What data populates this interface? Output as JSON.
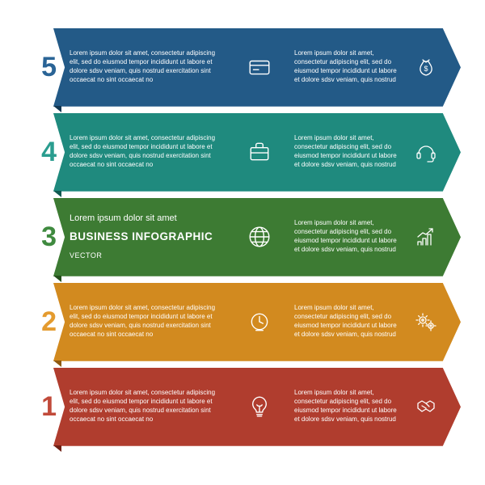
{
  "background_color": "#ffffff",
  "lorem_short": "Lorem ipsum dolor sit amet, consectetur adipiscing elit, sed do eiusmod tempor incididunt ut labore et dolore sdsv veniam, quis nostrud",
  "rows": [
    {
      "number": "5",
      "number_color": "#2a6496",
      "bg_color": "#235a87",
      "fold_color": "#123752",
      "left_text": "Lorem ipsum dolor sit amet, consectetur adipiscing elit, sed do eiusmod tempor incididunt ut labore et dolore sdsv veniam, quis nostrud exercitation sint occaecat no sint occaecat no",
      "left_icon": "card",
      "right_text": "Lorem ipsum dolor sit amet, consectetur adipiscing elit, sed do eiusmod tempor incididunt ut labore et dolore sdsv veniam, quis nostrud",
      "right_icon": "moneybag"
    },
    {
      "number": "4",
      "number_color": "#2a9d8f",
      "bg_color": "#1f8a7e",
      "fold_color": "#0f5a51",
      "left_text": "Lorem ipsum dolor sit amet, consectetur adipiscing elit, sed do eiusmod tempor incididunt ut labore et dolore sdsv veniam, quis nostrud exercitation sint occaecat no sint occaecat no",
      "left_icon": "briefcase",
      "right_text": "Lorem ipsum dolor sit amet, consectetur adipiscing elit, sed do eiusmod tempor incididunt ut labore et dolore sdsv veniam, quis nostrud",
      "right_icon": "headset"
    },
    {
      "number": "3",
      "number_color": "#3f8a3f",
      "bg_color": "#3d7b33",
      "fold_color": "#24501c",
      "title_line1": "Lorem ipsum dolor sit amet",
      "title_line2": "BUSINESS INFOGRAPHIC",
      "title_line3": "VECTOR",
      "left_icon": "globe",
      "right_text": "Lorem ipsum dolor sit amet, consectetur adipiscing elit, sed do eiusmod tempor incididunt ut labore et dolore sdsv veniam, quis nostrud",
      "right_icon": "chart"
    },
    {
      "number": "2",
      "number_color": "#e49b2f",
      "bg_color": "#d28a1f",
      "fold_color": "#8f5a10",
      "left_text": "Lorem ipsum dolor sit amet, consectetur adipiscing elit, sed do eiusmod tempor incididunt ut labore et dolore sdsv veniam, quis nostrud exercitation sint occaecat no sint occaecat no",
      "left_icon": "clock",
      "right_text": "Lorem ipsum dolor sit amet, consectetur adipiscing elit, sed do eiusmod tempor incididunt ut labore et dolore sdsv veniam, quis nostrud",
      "right_icon": "gears"
    },
    {
      "number": "1",
      "number_color": "#c14a3a",
      "bg_color": "#b03d2e",
      "fold_color": "#702015",
      "left_text": "Lorem ipsum dolor sit amet, consectetur adipiscing elit, sed do eiusmod tempor incididunt ut labore et dolore sdsv veniam, quis nostrud exercitation sint occaecat no sint occaecat no",
      "left_icon": "bulb",
      "right_text": "Lorem ipsum dolor sit amet, consectetur adipiscing elit, sed do eiusmod tempor incididunt ut labore et dolore sdsv veniam, quis nostrud",
      "right_icon": "handshake"
    }
  ]
}
